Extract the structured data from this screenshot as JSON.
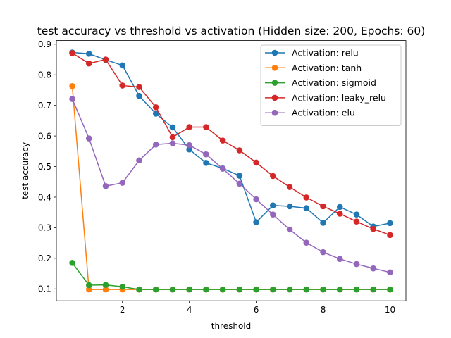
{
  "chart_data": {
    "type": "line",
    "title": "test accuracy vs threshold vs activation (Hidden size: 200, Epochs: 60)",
    "xlabel": "threshold",
    "ylabel": "test accuracy",
    "xlim": [
      0.025,
      10.475
    ],
    "ylim": [
      0.061,
      0.912
    ],
    "xticks": [
      2,
      4,
      6,
      8,
      10
    ],
    "yticks": [
      0.1,
      0.2,
      0.3,
      0.4,
      0.5,
      0.6,
      0.7,
      0.8,
      0.9
    ],
    "grid": false,
    "legend_position": "top-right",
    "x": [
      0.5,
      1.0,
      1.5,
      2.0,
      2.5,
      3.0,
      3.5,
      4.0,
      4.5,
      5.0,
      5.5,
      6.0,
      6.5,
      7.0,
      7.5,
      8.0,
      8.5,
      9.0,
      9.5,
      10.0
    ],
    "series": [
      {
        "name": "Activation: relu",
        "color": "#1f77b4",
        "values": [
          0.873,
          0.869,
          0.849,
          0.831,
          0.731,
          0.673,
          0.628,
          0.556,
          0.512,
          0.494,
          0.47,
          0.318,
          0.373,
          0.37,
          0.364,
          0.316,
          0.368,
          0.343,
          0.304,
          0.315
        ]
      },
      {
        "name": "Activation: tanh",
        "color": "#ff7f0e",
        "values": [
          0.763,
          0.098,
          0.098,
          0.098,
          0.098,
          0.098,
          0.098,
          0.098,
          0.098,
          0.098,
          0.098,
          0.098,
          0.098,
          0.098,
          0.098,
          0.098,
          0.098,
          0.098,
          0.098,
          0.098
        ]
      },
      {
        "name": "Activation: sigmoid",
        "color": "#2ca02c",
        "values": [
          0.185,
          0.112,
          0.113,
          0.107,
          0.098,
          0.098,
          0.098,
          0.098,
          0.098,
          0.098,
          0.098,
          0.098,
          0.098,
          0.098,
          0.098,
          0.098,
          0.098,
          0.098,
          0.098,
          0.098
        ]
      },
      {
        "name": "Activation: leaky_relu",
        "color": "#d62728",
        "values": [
          0.871,
          0.837,
          0.85,
          0.765,
          0.76,
          0.694,
          0.596,
          0.629,
          0.629,
          0.585,
          0.553,
          0.513,
          0.469,
          0.433,
          0.399,
          0.37,
          0.346,
          0.32,
          0.296,
          0.276
        ]
      },
      {
        "name": "Activation: elu",
        "color": "#9467bd",
        "values": [
          0.721,
          0.592,
          0.436,
          0.447,
          0.52,
          0.572,
          0.576,
          0.57,
          0.54,
          0.493,
          0.444,
          0.393,
          0.343,
          0.294,
          0.251,
          0.22,
          0.198,
          0.181,
          0.167,
          0.154
        ]
      }
    ]
  }
}
